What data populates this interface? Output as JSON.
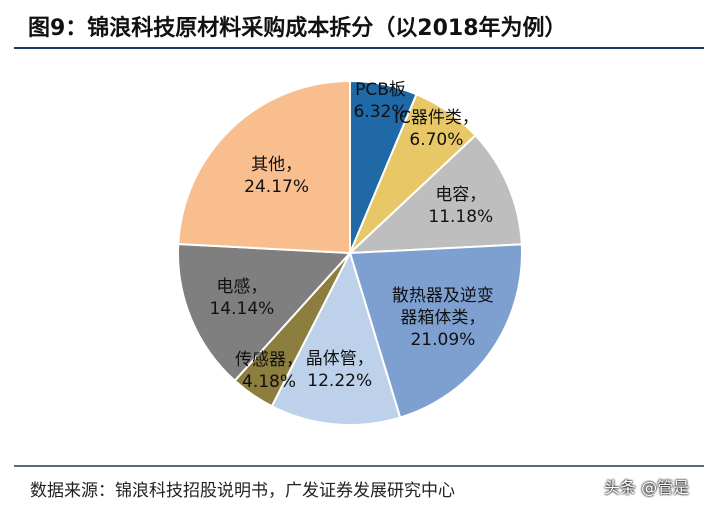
{
  "title": "图9：锦浪科技原材料采购成本拆分（以2018年为例）",
  "chart_data": {
    "type": "pie",
    "categories": [
      "PCB板",
      "IC器件类，",
      "电容，",
      "散热器及逆变器箱体类，",
      "晶体管，",
      "传感器，",
      "电感，",
      "其他，"
    ],
    "values": [
      6.32,
      6.7,
      11.18,
      21.09,
      12.22,
      4.18,
      14.14,
      24.17
    ],
    "value_labels": [
      "6.32%",
      "6.70%",
      "11.18%",
      "21.09%",
      "12.22%",
      "4.18%",
      "14.14%",
      "24.17%"
    ],
    "colors": [
      "#1f69a6",
      "#e8c766",
      "#bebebe",
      "#7ea0d1",
      "#bed1ea",
      "#8c7e3f",
      "#7f7f7f",
      "#f9be8d"
    ]
  },
  "source": "数据来源：锦浪科技招股说明书，广发证券发展研究中心",
  "watermark": "头条 @管是"
}
